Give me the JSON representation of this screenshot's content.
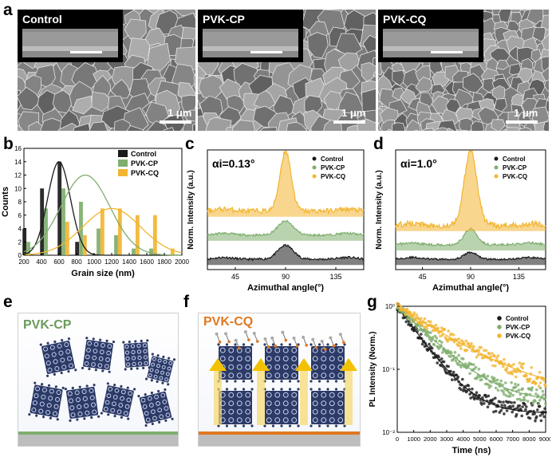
{
  "panel_a": {
    "label": "a",
    "images": [
      {
        "inset_title": "Control",
        "scale_label": "1 μm"
      },
      {
        "inset_title": "PVK-CP",
        "scale_label": "1 μm"
      },
      {
        "inset_title": "PVK-CQ",
        "scale_label": "1 μm"
      }
    ]
  },
  "panel_e": {
    "label": "e",
    "title": "PVK-CP",
    "title_color": "#6a9a5b"
  },
  "panel_f": {
    "label": "f",
    "title": "PVK-CQ",
    "title_color": "#e07820"
  },
  "colors": {
    "control": "#1a1a1a",
    "cp": "#7fae6e",
    "cq": "#f2b531",
    "crystal": "#2c3a66"
  },
  "chart_data": [
    {
      "id": "b",
      "panel_label": "b",
      "type": "bar",
      "xlabel": "Grain size (nm)",
      "ylabel": "Counts",
      "xlim": [
        200,
        2000
      ],
      "ylim": [
        0,
        16
      ],
      "xticks": [
        "200",
        "400",
        "600",
        "800",
        "1000",
        "1200",
        "1400",
        "1600",
        "1800",
        "2000"
      ],
      "yticks": [
        "0",
        "2",
        "4",
        "6",
        "8",
        "10",
        "12",
        "14",
        "16"
      ],
      "categories": [
        200,
        400,
        600,
        800,
        1000,
        1200,
        1400,
        1600,
        1800
      ],
      "series": [
        {
          "name": "Control",
          "values": [
            4,
            10,
            14,
            2,
            0,
            0,
            0,
            0,
            0
          ]
        },
        {
          "name": "PVK-CP",
          "values": [
            2,
            7,
            10,
            8,
            4,
            3,
            1,
            1,
            0
          ]
        },
        {
          "name": "PVK-CQ",
          "values": [
            0,
            0,
            5,
            3,
            7,
            7,
            6,
            6,
            1
          ]
        }
      ],
      "legend": [
        "Control",
        "PVK-CP",
        "PVK-CQ"
      ]
    },
    {
      "id": "c",
      "panel_label": "c",
      "type": "line",
      "annotation": "αi=0.13°",
      "xlabel": "Azimuthal angle(°)",
      "ylabel": "Norm. Intensity (a.u.)",
      "xlim": [
        20,
        160
      ],
      "xticks": [
        "45",
        "90",
        "135"
      ],
      "series": [
        {
          "name": "Control",
          "offset": 0.0,
          "peak": 0.6,
          "width": 7
        },
        {
          "name": "PVK-CP",
          "offset": 1.0,
          "peak": 0.6,
          "width": 7
        },
        {
          "name": "PVK-CQ",
          "offset": 2.0,
          "peak": 2.6,
          "width": 5
        }
      ],
      "legend": [
        "Control",
        "PVK-CP",
        "PVK-CQ"
      ]
    },
    {
      "id": "d",
      "panel_label": "d",
      "type": "line",
      "annotation": "αi=1.0°",
      "xlabel": "Azimuthal angle(°)",
      "ylabel": "Norm. Intensity (a.u.)",
      "xlim": [
        20,
        160
      ],
      "xticks": [
        "45",
        "90",
        "135"
      ],
      "series": [
        {
          "name": "Control",
          "offset": 0.0,
          "peak": 0.3,
          "width": 6
        },
        {
          "name": "PVK-CP",
          "offset": 0.6,
          "peak": 0.7,
          "width": 6
        },
        {
          "name": "PVK-CQ",
          "offset": 1.4,
          "peak": 3.2,
          "width": 6
        }
      ],
      "legend": [
        "Control",
        "PVK-CP",
        "PVK-CQ"
      ]
    },
    {
      "id": "g",
      "panel_label": "g",
      "type": "scatter",
      "xlabel": "Time (ns)",
      "ylabel": "PL Intensity (Norm.)",
      "xlim": [
        0,
        9000
      ],
      "ylim_log10": [
        -2,
        0
      ],
      "xticks": [
        "0",
        "1000",
        "2000",
        "3000",
        "4000",
        "5000",
        "6000",
        "7000",
        "8000",
        "9000"
      ],
      "yticks": [
        "10⁻²",
        "10⁻¹",
        "10⁰"
      ],
      "series": [
        {
          "name": "Control",
          "tau_ns": 1200,
          "floor": 0.02
        },
        {
          "name": "PVK-CP",
          "tau_ns": 1700,
          "floor": 0.03
        },
        {
          "name": "PVK-CQ",
          "tau_ns": 2600,
          "floor": 0.04
        }
      ],
      "legend": [
        "Control",
        "PVK-CP",
        "PVK-CQ"
      ]
    }
  ]
}
